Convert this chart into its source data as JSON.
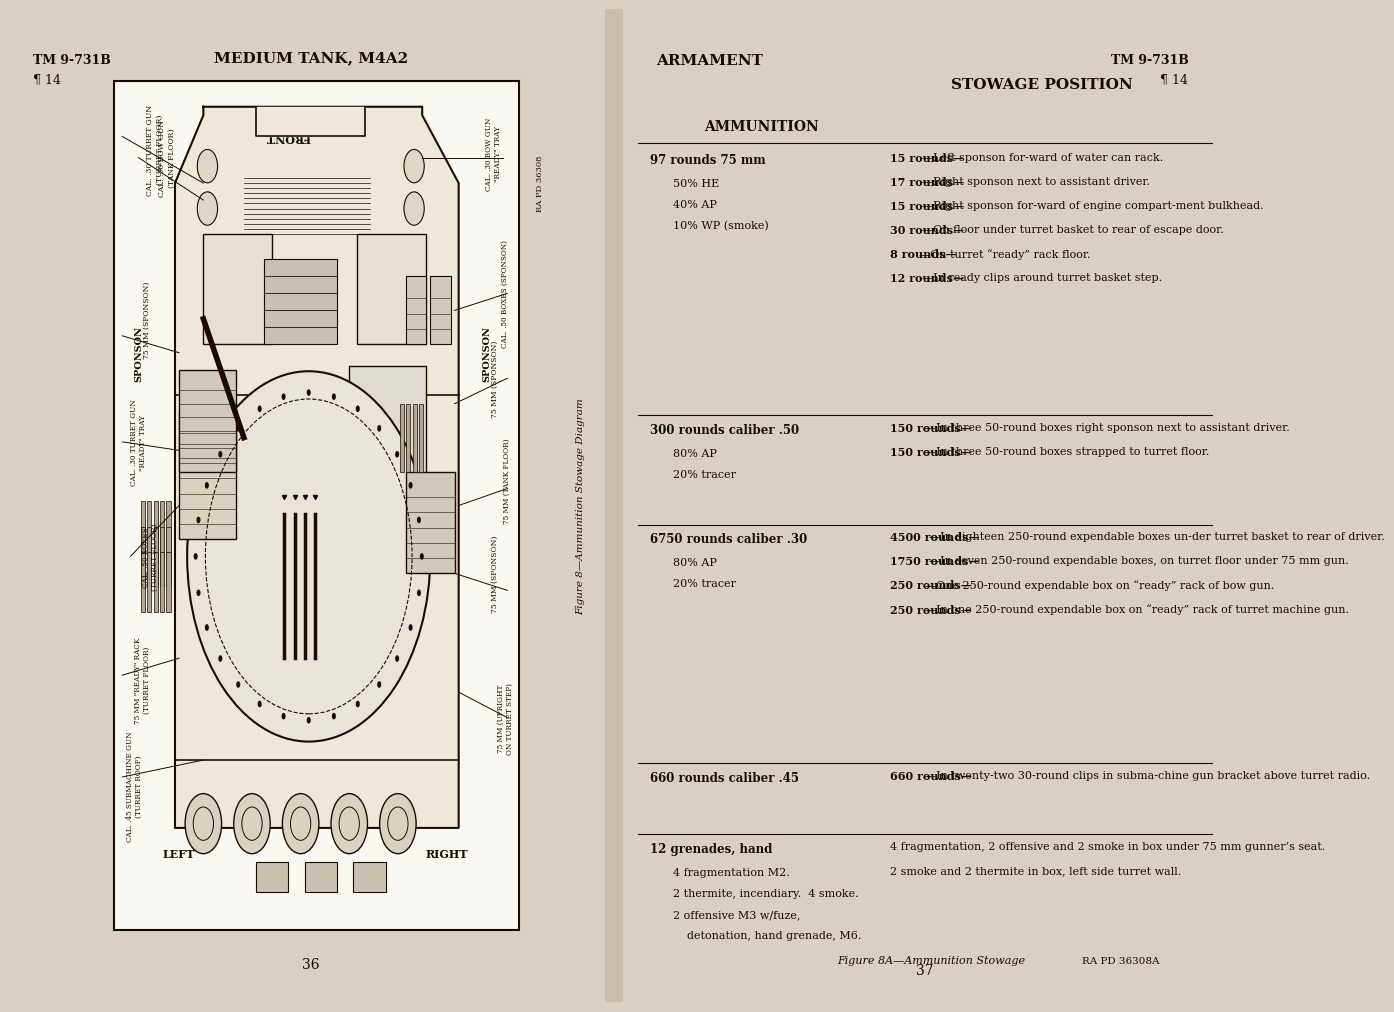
{
  "bg_color": "#f0ebe0",
  "text_color": "#1a0a00",
  "page_bg": "#d8d0c0",
  "left_page_num": "36",
  "right_page_num": "37",
  "tm_number": "TM 9-731B",
  "para": "¶ 14",
  "left_title": "MEDIUM TANK, M4A2",
  "right_title": "ARMAMENT",
  "figure_caption_left": "Figure 8—Ammunition Stowage Diagram",
  "figure_caption_right": "Figure 8A—Ammunition Stowage",
  "ra_pd_left": "RA PD 36308",
  "ra_pd_right": "RA PD 36308A",
  "ammo_title": "AMMUNITION",
  "stowage_title": "STOWAGE POSITION",
  "left_rotated_labels": [
    "CAL. .30 TURRET GUN\n(TURRET FLOOR)",
    "CAL. .30 BOW GUN\n(TANK FLOOR)",
    "75 MM (SPONSON)",
    "CAL. .30 TURRET GUN\n\"READY\" TRAY",
    "CAL. .50 BOXES\n(TURRET FLOOR)",
    "75 MM \"READY\" RACK\n(TURRET FLOOR)",
    "CAL. .45 SUBMACHINE GUN\n(TURRET ROOF)"
  ],
  "right_rotated_labels": [
    "CAL. .30 BOW GUN\n\"READY\" TRAY",
    "CAL. .50 BOXES (SPONSON)",
    "75 MM (SPONSON)",
    "75 MM (TANK FLOOR)",
    "75 MM (SPONSON)",
    "75 MM (UPRIGHT\nON TURRET STEP)"
  ],
  "ammo_sections": [
    {
      "header": "97 rounds 75 mm",
      "details": [
        "50% HE",
        "40% AP",
        "10% WP (smoke)"
      ]
    },
    {
      "header": "300 rounds caliber .50",
      "details": [
        "80% AP",
        "20% tracer"
      ]
    },
    {
      "header": "6750 rounds caliber .30",
      "details": [
        "80% AP",
        "20% tracer"
      ]
    },
    {
      "header": "660 rounds caliber .45",
      "details": []
    },
    {
      "header": "12 grenades, hand",
      "details": [
        "4 fragmentation M2.",
        "2 thermite, incendiary.  4 smoke.",
        "2 offensive M3 w/fuze,",
        "    detonation, hand grenade, M6."
      ]
    }
  ],
  "stowage_lines": [
    [
      [
        "15 rounds",
        "—Left sponson for-ward of water can rack."
      ],
      [
        "17 rounds",
        "—Right sponson next to assistant driver."
      ],
      [
        "15 rounds",
        "—Right sponson for-ward of engine compart-ment bulkhead."
      ],
      [
        "30 rounds",
        "—On floor under turret basket to rear of escape door."
      ],
      [
        "8 rounds",
        "—On turret “ready” rack floor."
      ],
      [
        "12 rounds",
        "—In ready clips around turret basket step."
      ]
    ],
    [
      [
        "150 rounds",
        "—In three 50-round boxes right sponson next to assistant driver."
      ],
      [
        "150 rounds",
        "—In three 50-round boxes strapped to turret floor."
      ]
    ],
    [
      [
        "4500 rounds",
        "—In eighteen 250-round expendable boxes un-der turret basket to rear of driver."
      ],
      [
        "1750 rounds",
        "—In seven 250-round expendable boxes, on turret floor under 75 mm gun."
      ],
      [
        "250 rounds",
        "—One 250-round expendable box on “ready” rack of bow gun."
      ],
      [
        "250 rounds",
        "—In one 250-round expendable box on “ready” rack of turret machine gun."
      ]
    ],
    [
      [
        "660 rounds",
        "—In twenty-two 30-round clips in subma-chine gun bracket above turret radio."
      ]
    ],
    [
      [
        "",
        "4 fragmentation, 2 offensive and 2 smoke in box under 75 mm gunner’s seat."
      ],
      [
        "",
        "2 smoke and 2 thermite in box, left side turret wall."
      ]
    ]
  ]
}
